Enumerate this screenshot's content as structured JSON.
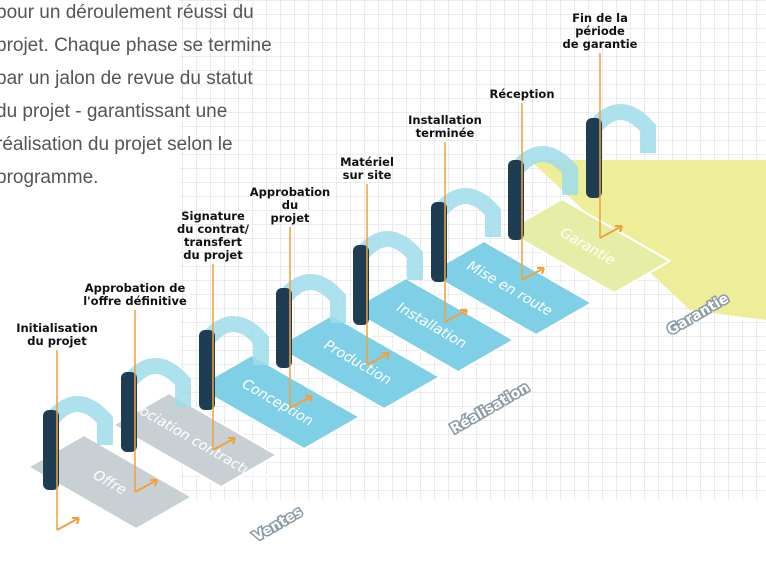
{
  "intro": {
    "lines": [
      "pour un déroulement réussi du",
      "projet. Chaque phase se termine",
      "par un jalon de revue du statut",
      "du projet - garantissant une",
      "réalisation du projet selon le",
      "programme."
    ]
  },
  "milestones": [
    {
      "lines": [
        "Initialisation",
        "du projet"
      ]
    },
    {
      "lines": [
        "Approbation de",
        "l'offre définitive"
      ]
    },
    {
      "lines": [
        "Signature",
        "du contrat/",
        "transfert",
        "du projet"
      ]
    },
    {
      "lines": [
        "Approbation",
        "du",
        "projet"
      ]
    },
    {
      "lines": [
        "Matériel",
        "sur site"
      ]
    },
    {
      "lines": [
        "Installation",
        "terminée"
      ]
    },
    {
      "lines": [
        "Réception"
      ]
    },
    {
      "lines": [
        "Fin de la",
        "période",
        "de garantie"
      ]
    }
  ],
  "phases": [
    "Offre",
    "Négociation contractuelle",
    "Conception",
    "Production",
    "Installation",
    "Mise en route",
    "Garantie"
  ],
  "groups": [
    "Ventes",
    "Réalisation",
    "Garantie"
  ]
}
